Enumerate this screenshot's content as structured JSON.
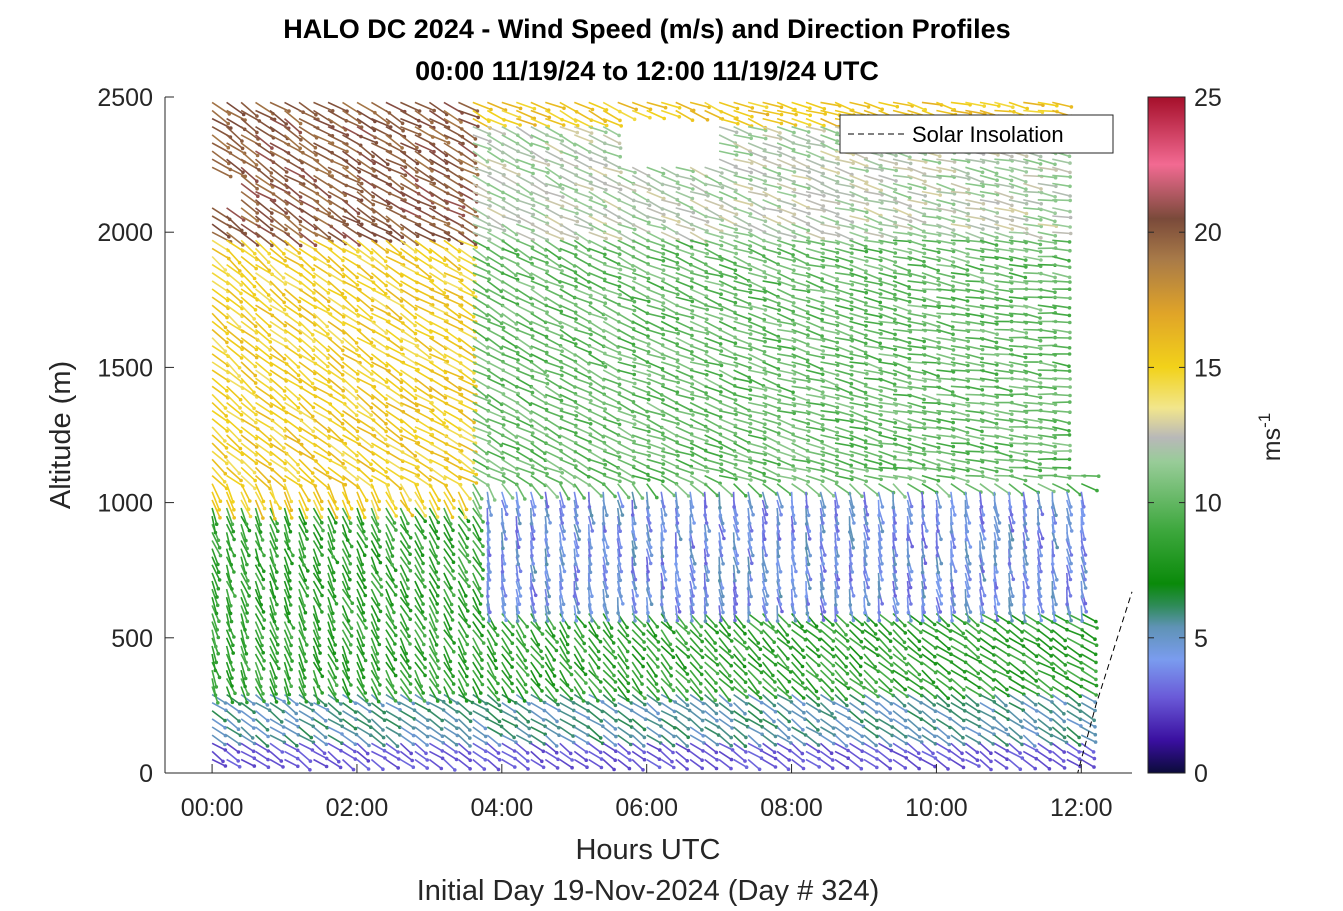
{
  "chart_data": {
    "type": "quiver",
    "title": "HALO DC 2024 - Wind Speed (m/s) and Direction Profiles",
    "subtitle": "00:00 11/19/24 to 12:00 11/19/24  UTC",
    "xlabel": "Hours UTC",
    "xlabel2": "Initial Day 19-Nov-2024 (Day # 324)",
    "ylabel": "Altitude (m)",
    "x_ticks": [
      "00:00",
      "02:00",
      "04:00",
      "06:00",
      "08:00",
      "10:00",
      "12:00"
    ],
    "x_tick_hours": [
      0,
      2,
      4,
      6,
      8,
      10,
      12
    ],
    "y_ticks": [
      "0",
      "500",
      "1000",
      "1500",
      "2000",
      "2500"
    ],
    "y_tick_values": [
      0,
      500,
      1000,
      1500,
      2000,
      2500
    ],
    "xlim_hours": [
      -0.65,
      12.7
    ],
    "ylim": [
      0,
      2500
    ],
    "legend": {
      "entries": [
        "Solar Insolation"
      ],
      "location": "top-right"
    },
    "colorbar": {
      "label": "ms",
      "label_superscript": "-1",
      "range": [
        0,
        25
      ],
      "ticks": [
        "0",
        "5",
        "10",
        "15",
        "20",
        "25"
      ],
      "tick_values": [
        0,
        5,
        10,
        15,
        20,
        25
      ],
      "stops": [
        {
          "v": 0,
          "c": "#0b0b3a"
        },
        {
          "v": 1.2,
          "c": "#3a0fa0"
        },
        {
          "v": 2.8,
          "c": "#6a5ad8"
        },
        {
          "v": 4.2,
          "c": "#7a9cef"
        },
        {
          "v": 5.4,
          "c": "#5f93b5"
        },
        {
          "v": 6.2,
          "c": "#2e8b57"
        },
        {
          "v": 7.0,
          "c": "#0a8a0a"
        },
        {
          "v": 9.0,
          "c": "#3ea83e"
        },
        {
          "v": 11.5,
          "c": "#98cc98"
        },
        {
          "v": 12.4,
          "c": "#b8b8b8"
        },
        {
          "v": 13.5,
          "c": "#f2e68c"
        },
        {
          "v": 15.0,
          "c": "#f2d21a"
        },
        {
          "v": 17.0,
          "c": "#e0a428"
        },
        {
          "v": 19.0,
          "c": "#a87a48"
        },
        {
          "v": 20.5,
          "c": "#7a4a3a"
        },
        {
          "v": 22.5,
          "c": "#f26a92"
        },
        {
          "v": 25.0,
          "c": "#a50f2a"
        }
      ]
    },
    "solar_insolation_points": [
      {
        "t": -0.65,
        "alt": 0
      },
      {
        "t": 11.95,
        "alt": 0
      },
      {
        "t": 12.2,
        "alt": 250
      },
      {
        "t": 12.7,
        "alt": 670
      }
    ],
    "wind_profile": {
      "time_start_hours": 0,
      "time_step_hours": 0.2,
      "time_count": 61,
      "altitude_start_m": 50,
      "altitude_step_m": 30,
      "altitude_count": 82,
      "speed_regimes_ms": {
        "near_surface_below_120m": 2.3,
        "layer_120_to_300m": 4.8,
        "mid_level_night": 7.5,
        "upper_1000_to_2000m_early": 14,
        "upper_above_2000m_early": 19,
        "upper_late": 9,
        "jet_core_03_to_09h_600_to_1000m": 3
      }
    }
  }
}
